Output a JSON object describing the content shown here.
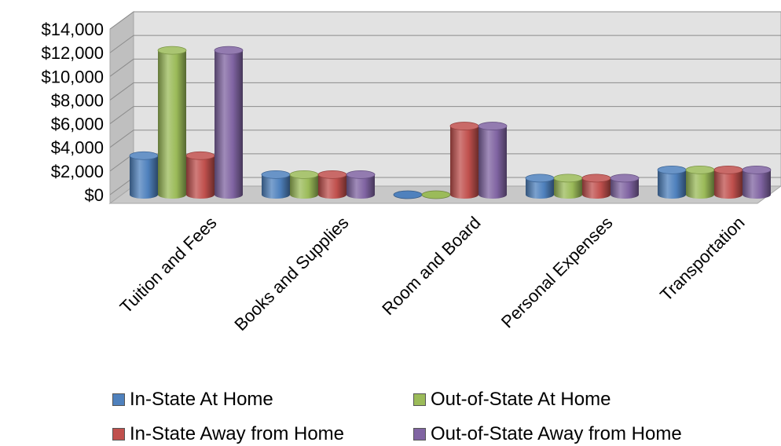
{
  "chart_data": {
    "type": "bar",
    "categories": [
      "Tuition and Fees",
      "Books and Supplies",
      "Room and Board",
      "Personal Expenses",
      "Transportation"
    ],
    "series": [
      {
        "name": "In-State At Home",
        "color": "#4F81BD",
        "values": [
          3300,
          1700,
          0,
          1400,
          2100
        ]
      },
      {
        "name": "Out-of-State At Home",
        "color": "#9BBB59",
        "values": [
          12200,
          1700,
          0,
          1400,
          2100
        ]
      },
      {
        "name": "In-State Away from Home",
        "color": "#C0504D",
        "values": [
          3300,
          1700,
          5800,
          1400,
          2100
        ]
      },
      {
        "name": "Out-of-State Away from Home",
        "color": "#8064A2",
        "values": [
          12200,
          1700,
          5800,
          1400,
          2100
        ]
      }
    ],
    "y_ticks": [
      "$14,000",
      "$12,000",
      "$10,000",
      "$8,000",
      "$6,000",
      "$4,000",
      "$2,000",
      "$0"
    ],
    "ylim": [
      0,
      14000
    ],
    "title": "",
    "xlabel": "",
    "ylabel": "",
    "grid": true,
    "legend_position": "bottom",
    "style": "3d-cylinder"
  }
}
